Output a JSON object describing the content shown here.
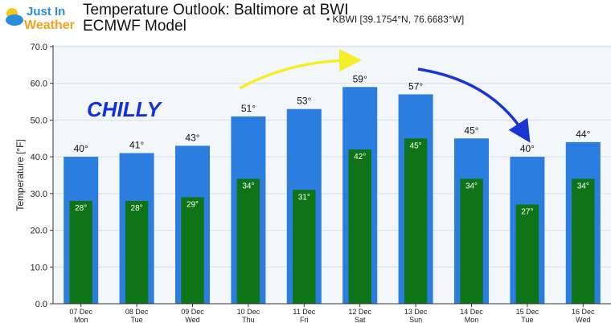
{
  "logo": {
    "line1": "Just In",
    "line2": "Weather"
  },
  "header": {
    "title_line1": "Temperature Outlook: Baltimore at BWI",
    "title_line2": "ECMWF Model",
    "station": "KBWI [39.1754°N, 76.6683°W]"
  },
  "annotation": "CHILLY",
  "colors": {
    "high": "#2b7de0",
    "low": "#0f7318",
    "yellow_arrow": "#f5ef2a",
    "blue_arrow": "#1a35d6"
  },
  "chart_data": {
    "type": "bar",
    "categories": [
      [
        "07 Dec",
        "Mon"
      ],
      [
        "08 Dec",
        "Tue"
      ],
      [
        "09 Dec",
        "Wed"
      ],
      [
        "10 Dec",
        "Thu"
      ],
      [
        "11 Dec",
        "Fri"
      ],
      [
        "12 Dec",
        "Sat"
      ],
      [
        "13 Dec",
        "Sun"
      ],
      [
        "14 Dec",
        "Mon"
      ],
      [
        "15 Dec",
        "Tue"
      ],
      [
        "16 Dec",
        "Wed"
      ]
    ],
    "series": [
      {
        "values": [
          40,
          41,
          43,
          51,
          53,
          59,
          57,
          45,
          40,
          44
        ]
      },
      {
        "values": [
          28,
          28,
          29,
          34,
          31,
          42,
          45,
          34,
          27,
          34
        ]
      }
    ],
    "ylabel": "Temperature [°F]",
    "ylim": [
      0,
      70
    ],
    "yticks": [
      0,
      10,
      20,
      30,
      40,
      50,
      60,
      70
    ],
    "grid": true
  }
}
